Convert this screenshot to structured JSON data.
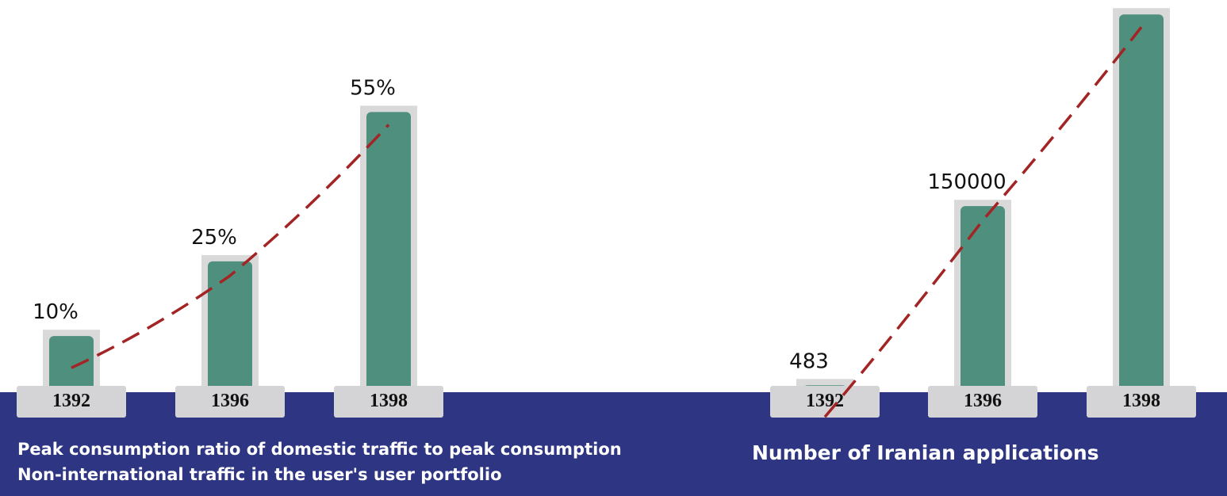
{
  "colors": {
    "band": "#2e3583",
    "bar": "#4e8f7e",
    "bar_shadow": "#d9d9d9",
    "label_box": "#d4d4d6",
    "trend": "#a32424",
    "caption": "#ffffff"
  },
  "chart_data": [
    {
      "type": "bar",
      "categories": [
        "1392",
        "1396",
        "1398"
      ],
      "values": [
        10,
        25,
        55
      ],
      "value_labels": [
        "10%",
        "25%",
        "55%"
      ],
      "ylim": [
        0,
        60
      ],
      "trendline": "dashed",
      "caption_lines": [
        "Peak consumption ratio of domestic traffic to peak consumption",
        "Non-international traffic in the user's user portfolio"
      ]
    },
    {
      "type": "bar",
      "categories": [
        "1392",
        "1396",
        "1398"
      ],
      "values": [
        483,
        150000,
        310000
      ],
      "value_labels": [
        "483",
        "150000",
        ""
      ],
      "ylim": [
        0,
        330000
      ],
      "trendline": "dashed",
      "caption_lines": [
        "Number of Iranian applications"
      ]
    }
  ]
}
